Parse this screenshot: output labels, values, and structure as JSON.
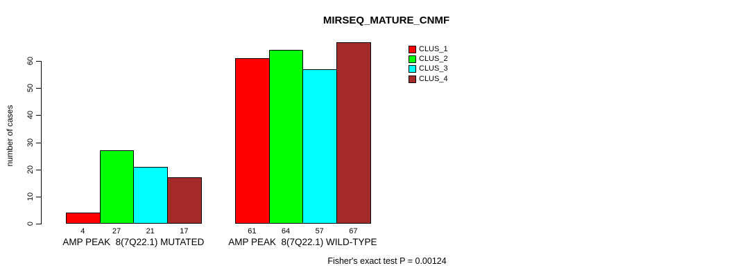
{
  "title": "MIRSEQ_MATURE_CNMF",
  "footer": "Fisher's exact test P = 0.00124",
  "chart_data": {
    "type": "bar",
    "title": "MIRSEQ_MATURE_CNMF",
    "xlabel": "",
    "ylabel": "number of cases",
    "ylim": [
      0,
      60
    ],
    "yticks": [
      0,
      10,
      20,
      30,
      40,
      50,
      60
    ],
    "grid": false,
    "legend_position": "top-right",
    "categories": [
      "AMP PEAK  8(7Q22.1) MUTATED",
      "AMP PEAK  8(7Q22.1) WILD-TYPE"
    ],
    "series": [
      {
        "name": "CLUS_1",
        "color": "#FF0000",
        "values": [
          4,
          61
        ]
      },
      {
        "name": "CLUS_2",
        "color": "#00FF00",
        "values": [
          27,
          64
        ]
      },
      {
        "name": "CLUS_3",
        "color": "#00FFFF",
        "values": [
          21,
          57
        ]
      },
      {
        "name": "CLUS_4",
        "color": "#A52A2A",
        "values": [
          17,
          67
        ]
      }
    ],
    "annotation": "Fisher's exact test P = 0.00124"
  }
}
